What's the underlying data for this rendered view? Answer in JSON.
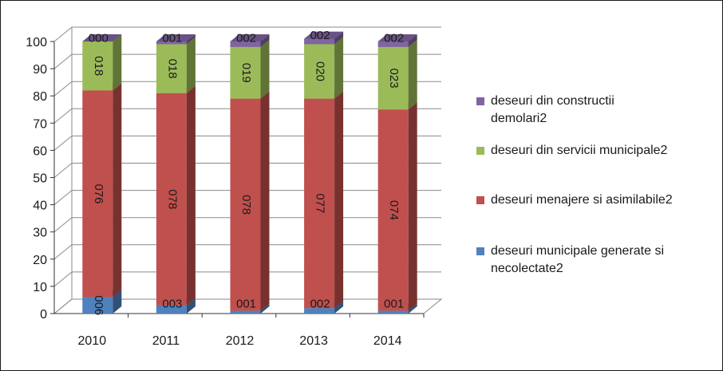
{
  "chart_data": {
    "type": "bar",
    "stacked": true,
    "style": "3d-stacked-column",
    "categories": [
      "2010",
      "2011",
      "2012",
      "2013",
      "2014"
    ],
    "series": [
      {
        "name": "deseuri municipale generate si necolectate2",
        "values": [
          6,
          3,
          1,
          2,
          1
        ],
        "labels": [
          "006",
          "003",
          "001",
          "002",
          "001"
        ],
        "color": "#4F81BD"
      },
      {
        "name": "deseuri menajere si asimilabile2",
        "values": [
          76,
          78,
          78,
          77,
          74
        ],
        "labels": [
          "076",
          "078",
          "078",
          "077",
          "074"
        ],
        "color": "#C0504D"
      },
      {
        "name": "deseuri din servicii municipale2",
        "values": [
          18,
          18,
          19,
          20,
          23
        ],
        "labels": [
          "018",
          "018",
          "019",
          "020",
          "023"
        ],
        "color": "#9BBB59"
      },
      {
        "name": "deseuri din constructii demolari2",
        "values": [
          0,
          1,
          2,
          2,
          2
        ],
        "labels": [
          "000",
          "001",
          "002",
          "002",
          "002"
        ],
        "color": "#8064A2"
      }
    ],
    "title": "",
    "xlabel": "",
    "ylabel": "",
    "ylim": [
      0,
      100
    ],
    "yticks": [
      0,
      10,
      20,
      30,
      40,
      50,
      60,
      70,
      80,
      90,
      100
    ],
    "grid": true,
    "legend_position": "right"
  },
  "legend": {
    "items": [
      {
        "label": "deseuri din constructii demolari2",
        "color": "#8064A2"
      },
      {
        "label": "deseuri din servicii municipale2",
        "color": "#9BBB59"
      },
      {
        "label": "deseuri menajere si asimilabile2",
        "color": "#C0504D"
      },
      {
        "label": "deseuri municipale generate si necolectate2",
        "color": "#4F81BD"
      }
    ]
  }
}
